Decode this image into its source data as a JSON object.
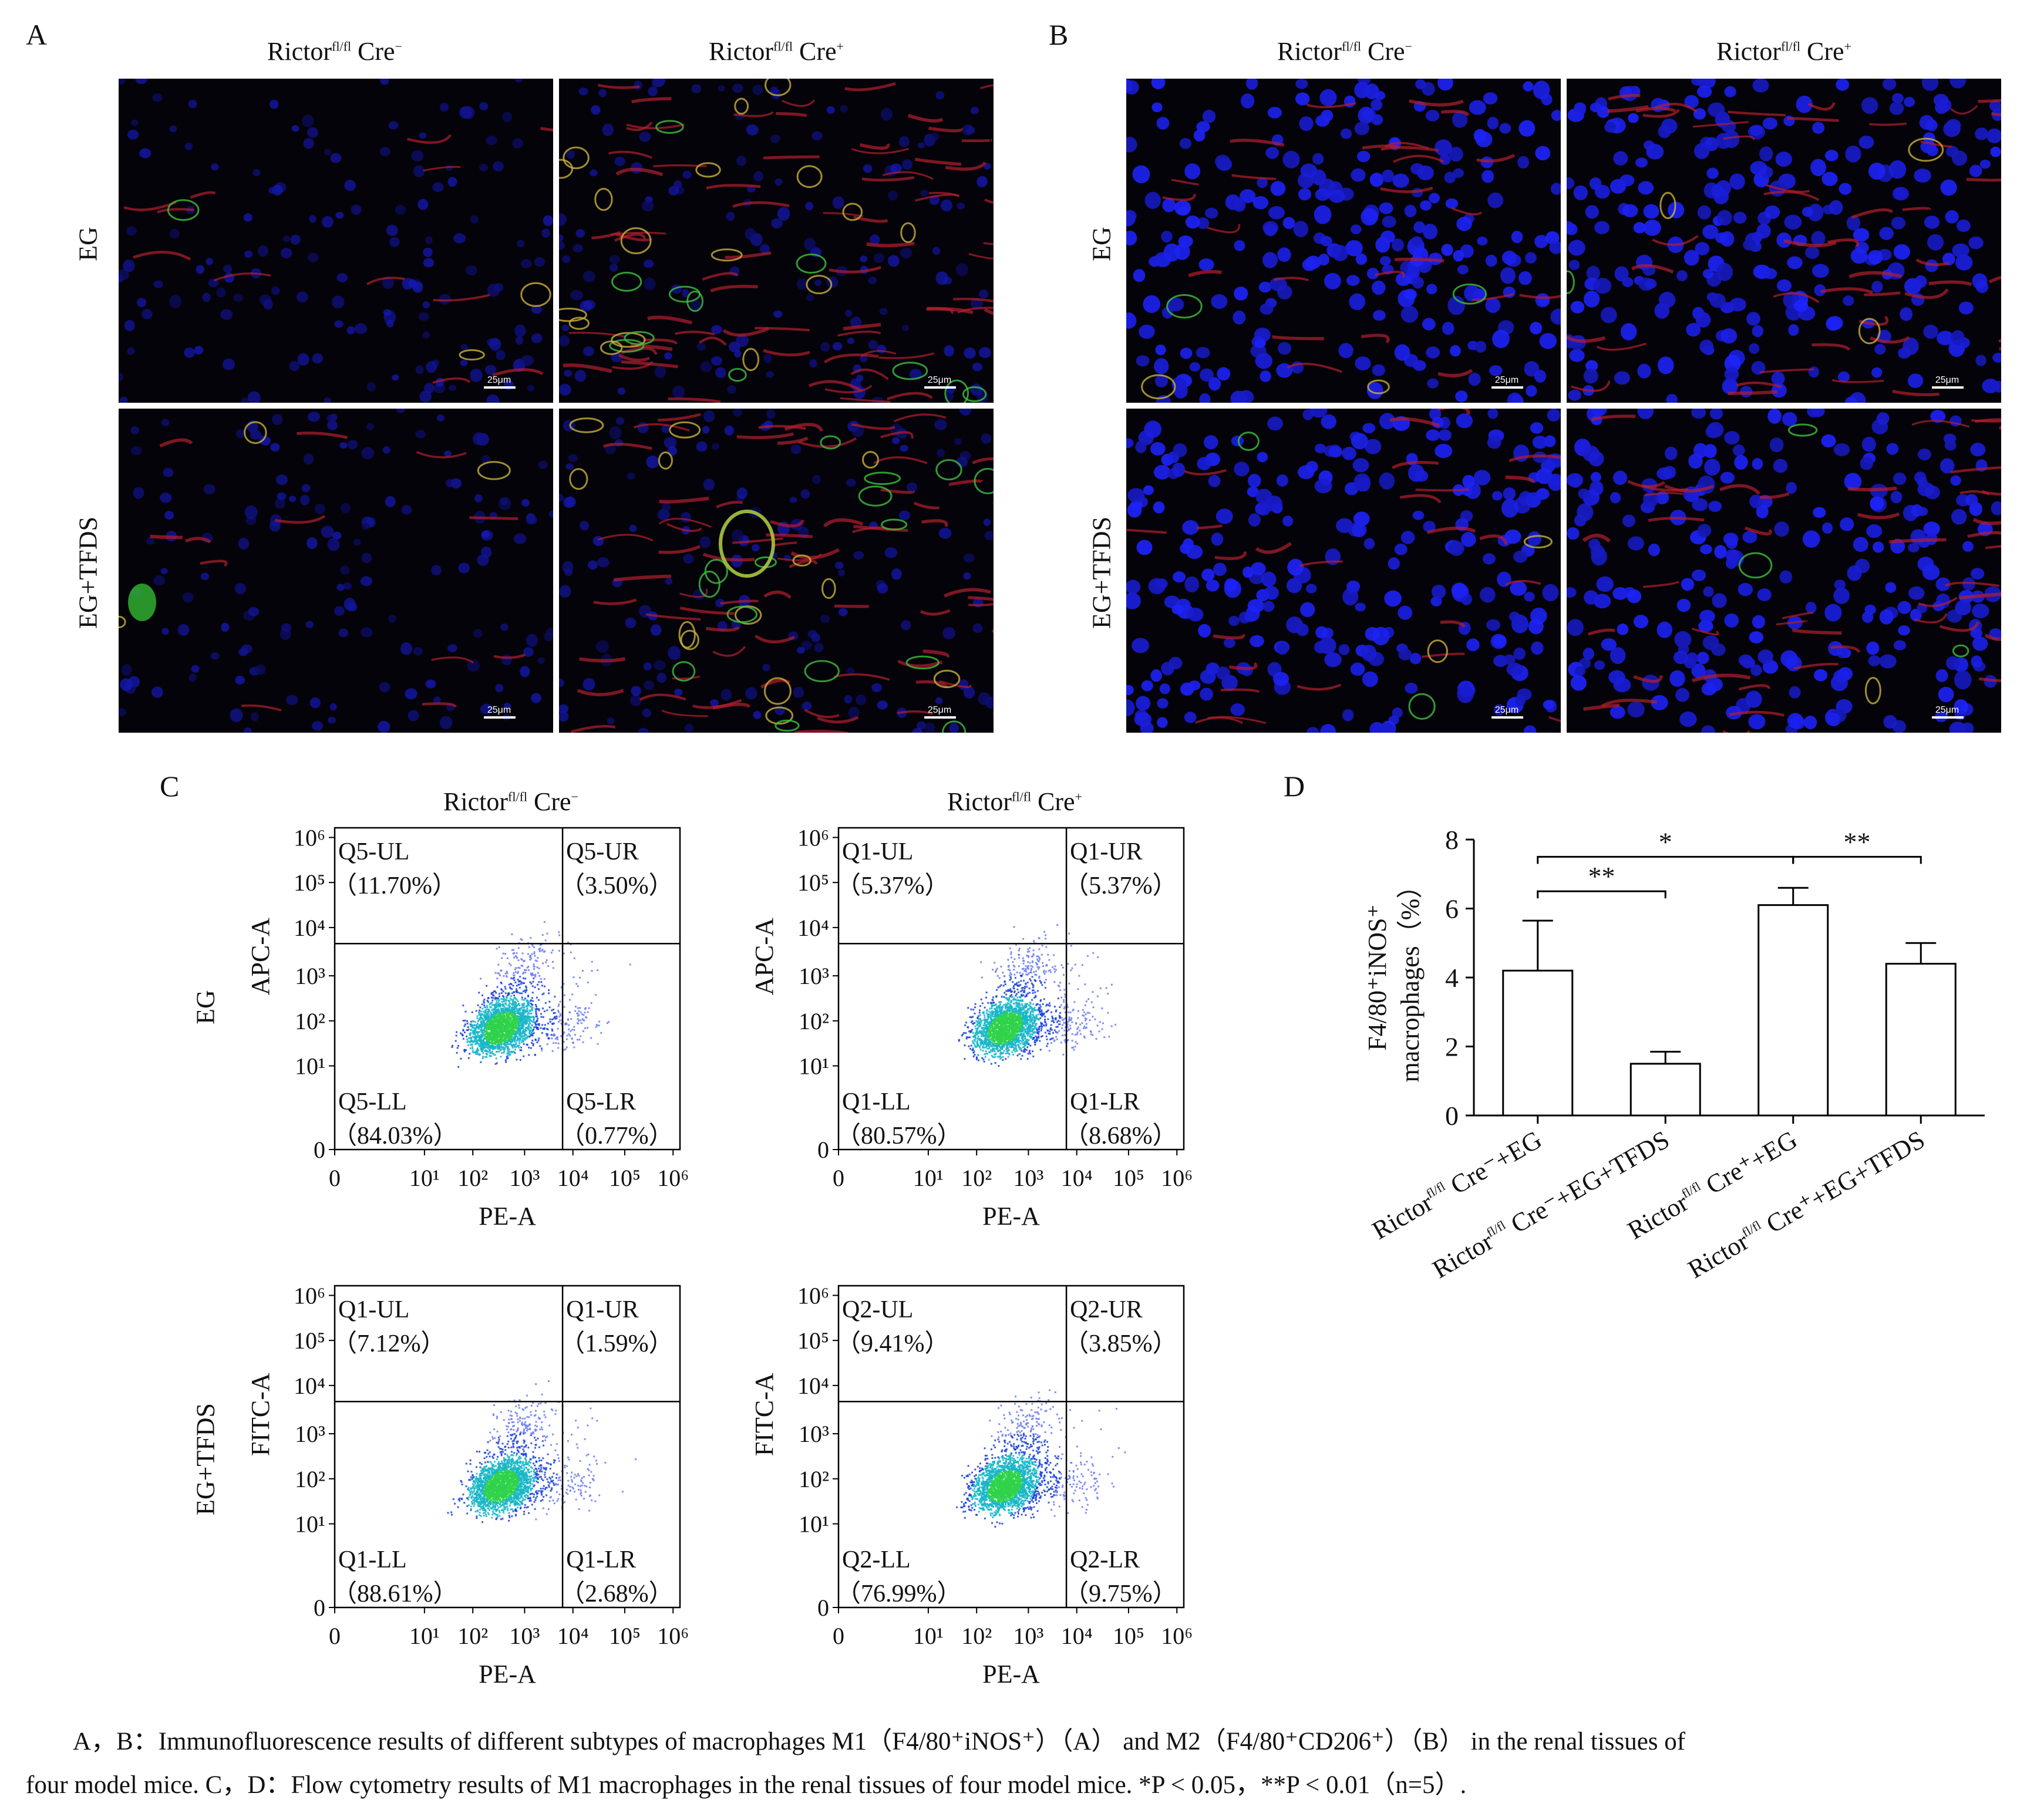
{
  "panels": {
    "A": {
      "label": "A",
      "col1_title": "Rictor",
      "col1_sup": "fl/fl",
      "col1_cre": "Cre",
      "col1_cre_sup": "−",
      "col2_title": "Rictor",
      "col2_sup": "fl/fl",
      "col2_cre": "Cre",
      "col2_cre_sup": "+",
      "row1": "EG",
      "row2": "EG+TFDS",
      "scale": "25μm"
    },
    "B": {
      "label": "B",
      "col1_title": "Rictor",
      "col1_sup": "fl/fl",
      "col1_cre": "Cre",
      "col1_cre_sup": "−",
      "col2_title": "Rictor",
      "col2_sup": "fl/fl",
      "col2_cre": "Cre",
      "col2_cre_sup": "+",
      "row1": "EG",
      "row2": "EG+TFDS",
      "scale": "25μm"
    },
    "C": {
      "label": "C",
      "col1_title": "Rictor",
      "col1_sup": "fl/fl",
      "col1_cre": "Cre",
      "col1_cre_sup": "−",
      "col2_title": "Rictor",
      "col2_sup": "fl/fl",
      "col2_cre": "Cre",
      "col2_cre_sup": "+",
      "row1": "EG",
      "row2": "EG+TFDS",
      "xlabel": "PE-A",
      "plots": [
        {
          "ylabel": "APC-A",
          "ul": "Q5-UL",
          "ul_v": "（11.70%）",
          "ur": "Q5-UR",
          "ur_v": "（3.50%）",
          "ll": "Q5-LL",
          "ll_v": "（84.03%）",
          "lr": "Q5-LR",
          "lr_v": "（0.77%）"
        },
        {
          "ylabel": "APC-A",
          "ul": "Q1-UL",
          "ul_v": "（5.37%）",
          "ur": "Q1-UR",
          "ur_v": "（5.37%）",
          "ll": "Q1-LL",
          "ll_v": "（80.57%）",
          "lr": "Q1-LR",
          "lr_v": "（8.68%）"
        },
        {
          "ylabel": "FITC-A",
          "ul": "Q1-UL",
          "ul_v": "（7.12%）",
          "ur": "Q1-UR",
          "ur_v": "（1.59%）",
          "ll": "Q1-LL",
          "ll_v": "（88.61%）",
          "lr": "Q1-LR",
          "lr_v": "（2.68%）"
        },
        {
          "ylabel": "FITC-A",
          "ul": "Q2-UL",
          "ul_v": "（9.41%）",
          "ur": "Q2-UR",
          "ur_v": "（3.85%）",
          "ll": "Q2-LL",
          "ll_v": "（76.99%）",
          "lr": "Q2-LR",
          "lr_v": "（9.75%）"
        }
      ],
      "ticks": [
        "0",
        "10¹",
        "10²",
        "10³",
        "10⁴",
        "10⁵",
        "10⁶"
      ]
    },
    "D": {
      "label": "D"
    }
  },
  "chart_data": {
    "type": "bar",
    "title": "",
    "ylabel_line1": "F4/80⁺iNOS⁺",
    "ylabel_line2": "macrophages（%）",
    "ylim": [
      0,
      8
    ],
    "yticks": [
      "0",
      "2",
      "4",
      "6",
      "8"
    ],
    "categories": [
      "Rictorfl/fl Cre⁻+EG",
      "Rictorfl/fl Cre⁻+EG+TFDS",
      "Rictorfl/fl Cre⁺+EG",
      "Rictorfl/fl Cre⁺+EG+TFDS"
    ],
    "category_labels": [
      {
        "pre": "Rictor",
        "sup": "fl/fl",
        "post": " Cre⁻+EG"
      },
      {
        "pre": "Rictor",
        "sup": "fl/fl",
        "post": " Cre⁻+EG+TFDS"
      },
      {
        "pre": "Rictor",
        "sup": "fl/fl",
        "post": " Cre⁺+EG"
      },
      {
        "pre": "Rictor",
        "sup": "fl/fl",
        "post": " Cre⁺+EG+TFDS"
      }
    ],
    "values": [
      4.2,
      1.5,
      6.1,
      4.4
    ],
    "errors": [
      1.45,
      0.35,
      0.5,
      0.6
    ],
    "significance": [
      {
        "from": 0,
        "to": 1,
        "label": "**"
      },
      {
        "from": 0,
        "to": 2,
        "label": "*"
      },
      {
        "from": 2,
        "to": 3,
        "label": "**"
      }
    ]
  },
  "caption": {
    "line1": "A，B：Immunofluorescence results of different subtypes of macrophages M1（F4/80⁺iNOS⁺）（A） and M2（F4/80⁺CD206⁺）（B） in the renal tissues of",
    "line2": "four model mice. C，D：Flow cytometry results of M1 macrophages in the renal tissues of four model mice. *P < 0.05，**P < 0.01（n=5）."
  }
}
